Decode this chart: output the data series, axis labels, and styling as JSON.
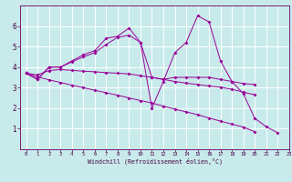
{
  "xlabel": "Windchill (Refroidissement éolien,°C)",
  "x": [
    0,
    1,
    2,
    3,
    4,
    5,
    6,
    7,
    8,
    9,
    10,
    11,
    12,
    13,
    14,
    15,
    16,
    17,
    18,
    19,
    20,
    21,
    22,
    23
  ],
  "line1": [
    3.7,
    3.4,
    4.0,
    4.0,
    4.3,
    4.6,
    4.8,
    5.4,
    5.5,
    5.9,
    5.2,
    2.0,
    3.3,
    4.7,
    5.2,
    6.5,
    6.2,
    4.3,
    3.3,
    2.7,
    1.5,
    1.1,
    0.8,
    null
  ],
  "line2": [
    3.7,
    3.4,
    4.0,
    4.0,
    4.25,
    4.5,
    4.7,
    5.1,
    5.45,
    5.55,
    5.2,
    3.5,
    3.4,
    3.5,
    3.5,
    3.5,
    3.5,
    3.4,
    3.3,
    3.2,
    3.15,
    null,
    null,
    null
  ],
  "line3": [
    3.7,
    3.62,
    3.83,
    3.88,
    3.84,
    3.8,
    3.77,
    3.73,
    3.7,
    3.67,
    3.58,
    3.5,
    3.4,
    3.3,
    3.22,
    3.15,
    3.08,
    3.02,
    2.92,
    2.78,
    2.65,
    null,
    null,
    null
  ],
  "line4": [
    3.7,
    3.52,
    3.38,
    3.25,
    3.12,
    3.0,
    2.87,
    2.75,
    2.63,
    2.5,
    2.37,
    2.25,
    2.1,
    1.95,
    1.82,
    1.68,
    1.52,
    1.37,
    1.22,
    1.08,
    0.85,
    null,
    null,
    null
  ],
  "line_color": "#990099",
  "bg_color": "#c8eaea",
  "grid_color": "#ffffff",
  "ylim": [
    0,
    7
  ],
  "xlim": [
    -0.5,
    23
  ],
  "yticks": [
    1,
    2,
    3,
    4,
    5,
    6
  ],
  "xticks": [
    0,
    1,
    2,
    3,
    4,
    5,
    6,
    7,
    8,
    9,
    10,
    11,
    12,
    13,
    14,
    15,
    16,
    17,
    18,
    19,
    20,
    21,
    22,
    23
  ]
}
